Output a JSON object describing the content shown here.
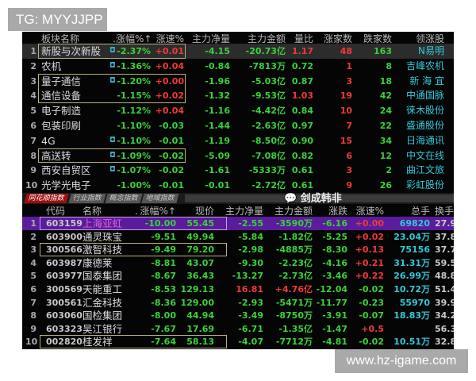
{
  "overlay_top": "TG: MYYJJPP",
  "overlay_bottom": "www.hz-igame.com",
  "watermark": "剑成韩非",
  "colors": {
    "up": "#f03a3a",
    "down": "#3ad23a",
    "stock": "#33c8d8",
    "highlight_row": "#5a1c9c"
  },
  "sectors": {
    "headers": [
      "板块名称",
      ".",
      "涨幅%↑",
      "涨速%",
      "主力净量",
      "主力金额",
      "量比",
      "涨家数",
      "跌家数",
      "领涨股"
    ],
    "rows": [
      [
        "1",
        "新股与次新股",
        "-2.37%",
        "+0.01",
        "-4.15",
        "-20.73亿",
        "1.17",
        "48",
        "163",
        "N易明"
      ],
      [
        "2",
        "农机",
        "-1.36%",
        "+0.04",
        "-0.84",
        "-7813万",
        "0.72",
        "1",
        "8",
        "吉峰农机"
      ],
      [
        "3",
        "量子通信",
        "-1.20%",
        "+0.00",
        "-1.96",
        "-5.03亿",
        "0.87",
        "3",
        "18",
        "新 海 宜"
      ],
      [
        "4",
        "通信设备",
        "-1.15%",
        "+0.02",
        "-1.32",
        "-9.53亿",
        "1.03",
        "19",
        "42",
        "中通国脉"
      ],
      [
        "5",
        "电子制造",
        "-1.12%",
        "+0.04",
        "-1.16",
        "-4.42亿",
        "0.84",
        "10",
        "24",
        "徕木股份"
      ],
      [
        "6",
        "包装印刷",
        "-1.10%",
        "-0.03",
        "-1.44",
        "-2.63亿",
        "0.97",
        "7",
        "22",
        "盛通股份"
      ],
      [
        "7",
        "4G",
        "-1.10%",
        "-0.01",
        "-1.19",
        "-8.50亿",
        "0.90",
        "15",
        "34",
        "日海通讯"
      ],
      [
        "8",
        "高送转",
        "-1.09%",
        "-0.02",
        "-5.09",
        "-7.08亿",
        "0.82",
        "6",
        "12",
        "中文在线"
      ],
      [
        "9",
        "西安自贸区",
        "-1.07%",
        "-0.02",
        "-1.61",
        "-5333万",
        "0.61",
        "3",
        "2",
        "曲江文旅"
      ],
      [
        "10",
        "光学光电子",
        "-1.00%",
        "-0.01",
        "-0.01",
        "-2.72亿",
        "0.61",
        "9",
        "26",
        "彩虹股份"
      ]
    ]
  },
  "tabs": [
    "同花顺指数",
    "行业指数",
    "概念指数",
    "地域指数"
  ],
  "stocks": {
    "headers": [
      "代码",
      "名称",
      ".",
      "涨幅%↑",
      "现价",
      "主力净量",
      "主力金额",
      "涨跌",
      "涨速%",
      "总手",
      "换手"
    ],
    "rows": [
      [
        "1",
        "603159",
        "上海亚虹",
        "-10.00",
        "55.45",
        "-2.55",
        "-3590万",
        "-6.16",
        "+0.00",
        "69820",
        "27.9"
      ],
      [
        "2",
        "603900",
        "通灵珠宝",
        "-9.51",
        "49.94",
        "-5.84",
        "-1.82亿",
        "-5.25",
        "+0.02",
        "23.04万",
        "37.8"
      ],
      [
        "3",
        "300566",
        "激智科技",
        "-9.49",
        "79.20",
        "-2.98",
        "-4885万",
        "-8.30",
        "+0.13",
        "75156",
        "37.7"
      ],
      [
        "4",
        "603987",
        "康德莱",
        "-8.81",
        "43.07",
        "-9.30",
        "-2.23亿",
        "-4.16",
        "+0.21",
        "31.31万",
        "59.5"
      ],
      [
        "5",
        "603977",
        "国泰集团",
        "-8.67",
        "36.43",
        "-13.27",
        "-2.73亿",
        "-3.46",
        "+0.22",
        "26.99万",
        "48.8"
      ],
      [
        "6",
        "300569",
        "天能重工",
        "-8.53",
        "129.13",
        "16.81",
        "+4.76亿",
        "-12.04",
        "-0.02",
        "10.72万",
        "51.4"
      ],
      [
        "7",
        "300561",
        "汇金科技",
        "-8.36",
        "129.00",
        "-2.93",
        "-5471万",
        "-11.77",
        "-0.23",
        "55970",
        "39.9"
      ],
      [
        "8",
        "603060",
        "国检集团",
        "-8.00",
        "44.94",
        "-3.49",
        "-8750万",
        "-3.91",
        "-0.07",
        "18.83万",
        "34.2"
      ],
      [
        "9",
        "603323",
        "吴江银行",
        "-7.67",
        "17.69",
        "-6.71",
        "-1.35亿",
        "-1.47",
        "+0.5",
        "",
        "56.3"
      ],
      [
        "10",
        "002820",
        "桂发祥",
        "-7.64",
        "58.13",
        "-4.07",
        "-7712万",
        "-4.81",
        "-0.02",
        "10.51万",
        "32.8"
      ]
    ]
  }
}
